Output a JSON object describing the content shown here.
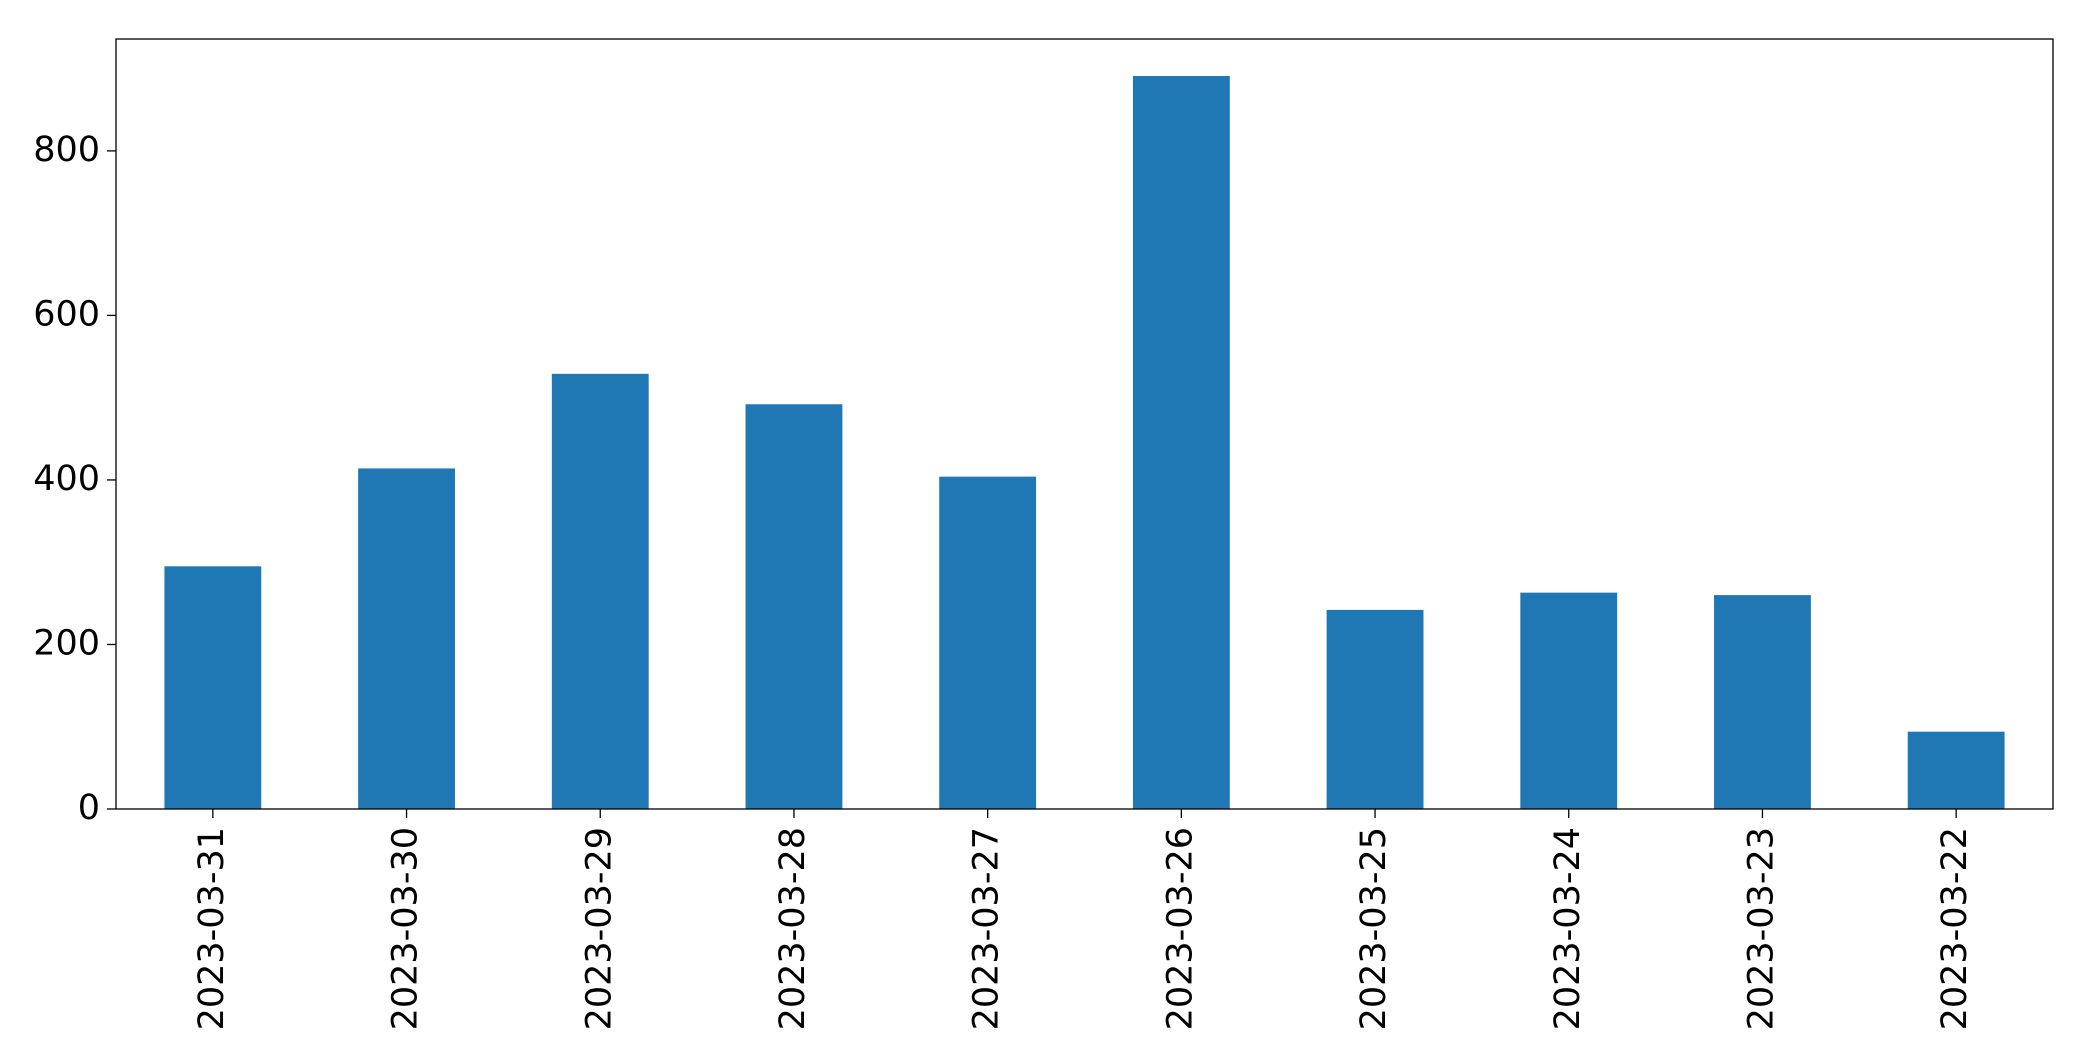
{
  "chart_data": {
    "type": "bar",
    "categories": [
      "2023-03-31",
      "2023-03-30",
      "2023-03-29",
      "2023-03-28",
      "2023-03-27",
      "2023-03-26",
      "2023-03-25",
      "2023-03-24",
      "2023-03-23",
      "2023-03-22"
    ],
    "values": [
      295,
      414,
      529,
      492,
      404,
      891,
      242,
      263,
      260,
      94
    ],
    "color": "#1f77b4",
    "ylim": [
      0,
      936
    ],
    "yticks": [
      0,
      200,
      400,
      600,
      800
    ],
    "grid": false
  }
}
